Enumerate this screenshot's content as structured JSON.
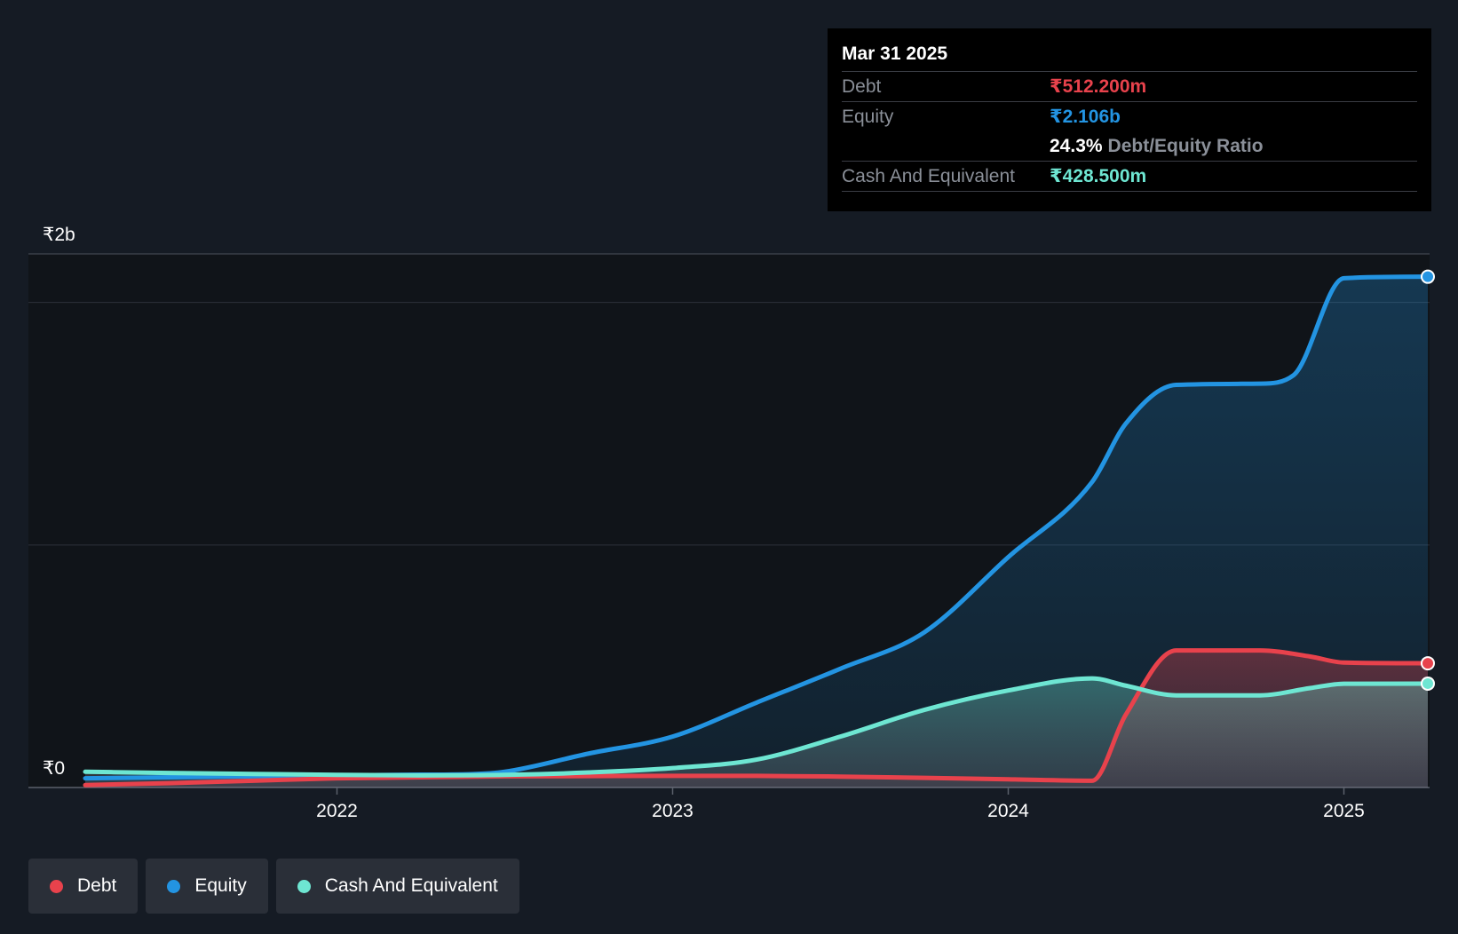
{
  "colors": {
    "debt": "#e8424c",
    "equity": "#2394e2",
    "cash": "#6ee6d2",
    "background": "#151b24",
    "plot_background": "#101419",
    "grid": "#2c313a"
  },
  "tooltip": {
    "date": "Mar 31 2025",
    "debt_label": "Debt",
    "debt_value": "₹512.200m",
    "equity_label": "Equity",
    "equity_value": "₹2.106b",
    "ratio_value": "24.3%",
    "ratio_label": "Debt/Equity Ratio",
    "cash_label": "Cash And Equivalent",
    "cash_value": "₹428.500m"
  },
  "legend": {
    "debt": "Debt",
    "equity": "Equity",
    "cash": "Cash And Equivalent"
  },
  "chart_data": {
    "type": "area",
    "title": "",
    "xlabel": "",
    "ylabel": "",
    "x_range": [
      2021.25,
      2025.25
    ],
    "ylim": [
      0,
      2200
    ],
    "y_unit": "₹ millions",
    "y_tick_labels": [
      {
        "value": 0,
        "label": "₹0"
      },
      {
        "value": 2200,
        "label": "₹2b"
      }
    ],
    "y_gridlines": [
      0,
      1000,
      2000,
      2200
    ],
    "x_ticks": [
      {
        "value": 2022,
        "label": "2022"
      },
      {
        "value": 2023,
        "label": "2023"
      },
      {
        "value": 2024,
        "label": "2024"
      },
      {
        "value": 2025,
        "label": "2025"
      }
    ],
    "series": [
      {
        "name": "Equity",
        "color_key": "equity",
        "points": [
          [
            2021.25,
            38
          ],
          [
            2021.5,
            42
          ],
          [
            2021.75,
            46
          ],
          [
            2022,
            50
          ],
          [
            2022.25,
            53
          ],
          [
            2022.4,
            55
          ],
          [
            2022.5,
            65
          ],
          [
            2022.75,
            140
          ],
          [
            2023,
            210
          ],
          [
            2023.25,
            350
          ],
          [
            2023.5,
            490
          ],
          [
            2023.75,
            640
          ],
          [
            2024,
            950
          ],
          [
            2024.25,
            1260
          ],
          [
            2024.35,
            1500
          ],
          [
            2024.5,
            1660
          ],
          [
            2024.75,
            1665
          ],
          [
            2024.85,
            1700
          ],
          [
            2025,
            2100
          ],
          [
            2025.25,
            2106
          ]
        ]
      },
      {
        "name": "Debt",
        "color_key": "debt",
        "points": [
          [
            2021.25,
            10
          ],
          [
            2021.5,
            18
          ],
          [
            2021.75,
            28
          ],
          [
            2022,
            38
          ],
          [
            2022.25,
            42
          ],
          [
            2022.5,
            46
          ],
          [
            2022.75,
            47
          ],
          [
            2023,
            48
          ],
          [
            2023.25,
            48
          ],
          [
            2023.5,
            45
          ],
          [
            2023.75,
            40
          ],
          [
            2024,
            34
          ],
          [
            2024.25,
            28
          ],
          [
            2024.35,
            300
          ],
          [
            2024.5,
            565
          ],
          [
            2024.75,
            565
          ],
          [
            2024.9,
            540
          ],
          [
            2025,
            515
          ],
          [
            2025.25,
            512.2
          ]
        ]
      },
      {
        "name": "Cash And Equivalent",
        "color_key": "cash",
        "points": [
          [
            2021.25,
            65
          ],
          [
            2021.5,
            60
          ],
          [
            2021.75,
            56
          ],
          [
            2022,
            52
          ],
          [
            2022.25,
            50
          ],
          [
            2022.5,
            52
          ],
          [
            2022.75,
            62
          ],
          [
            2023,
            80
          ],
          [
            2023.25,
            115
          ],
          [
            2023.5,
            210
          ],
          [
            2023.75,
            320
          ],
          [
            2024,
            400
          ],
          [
            2024.25,
            450
          ],
          [
            2024.35,
            420
          ],
          [
            2024.5,
            380
          ],
          [
            2024.75,
            380
          ],
          [
            2024.9,
            410
          ],
          [
            2025,
            428
          ],
          [
            2025.25,
            428.5
          ]
        ]
      }
    ]
  }
}
